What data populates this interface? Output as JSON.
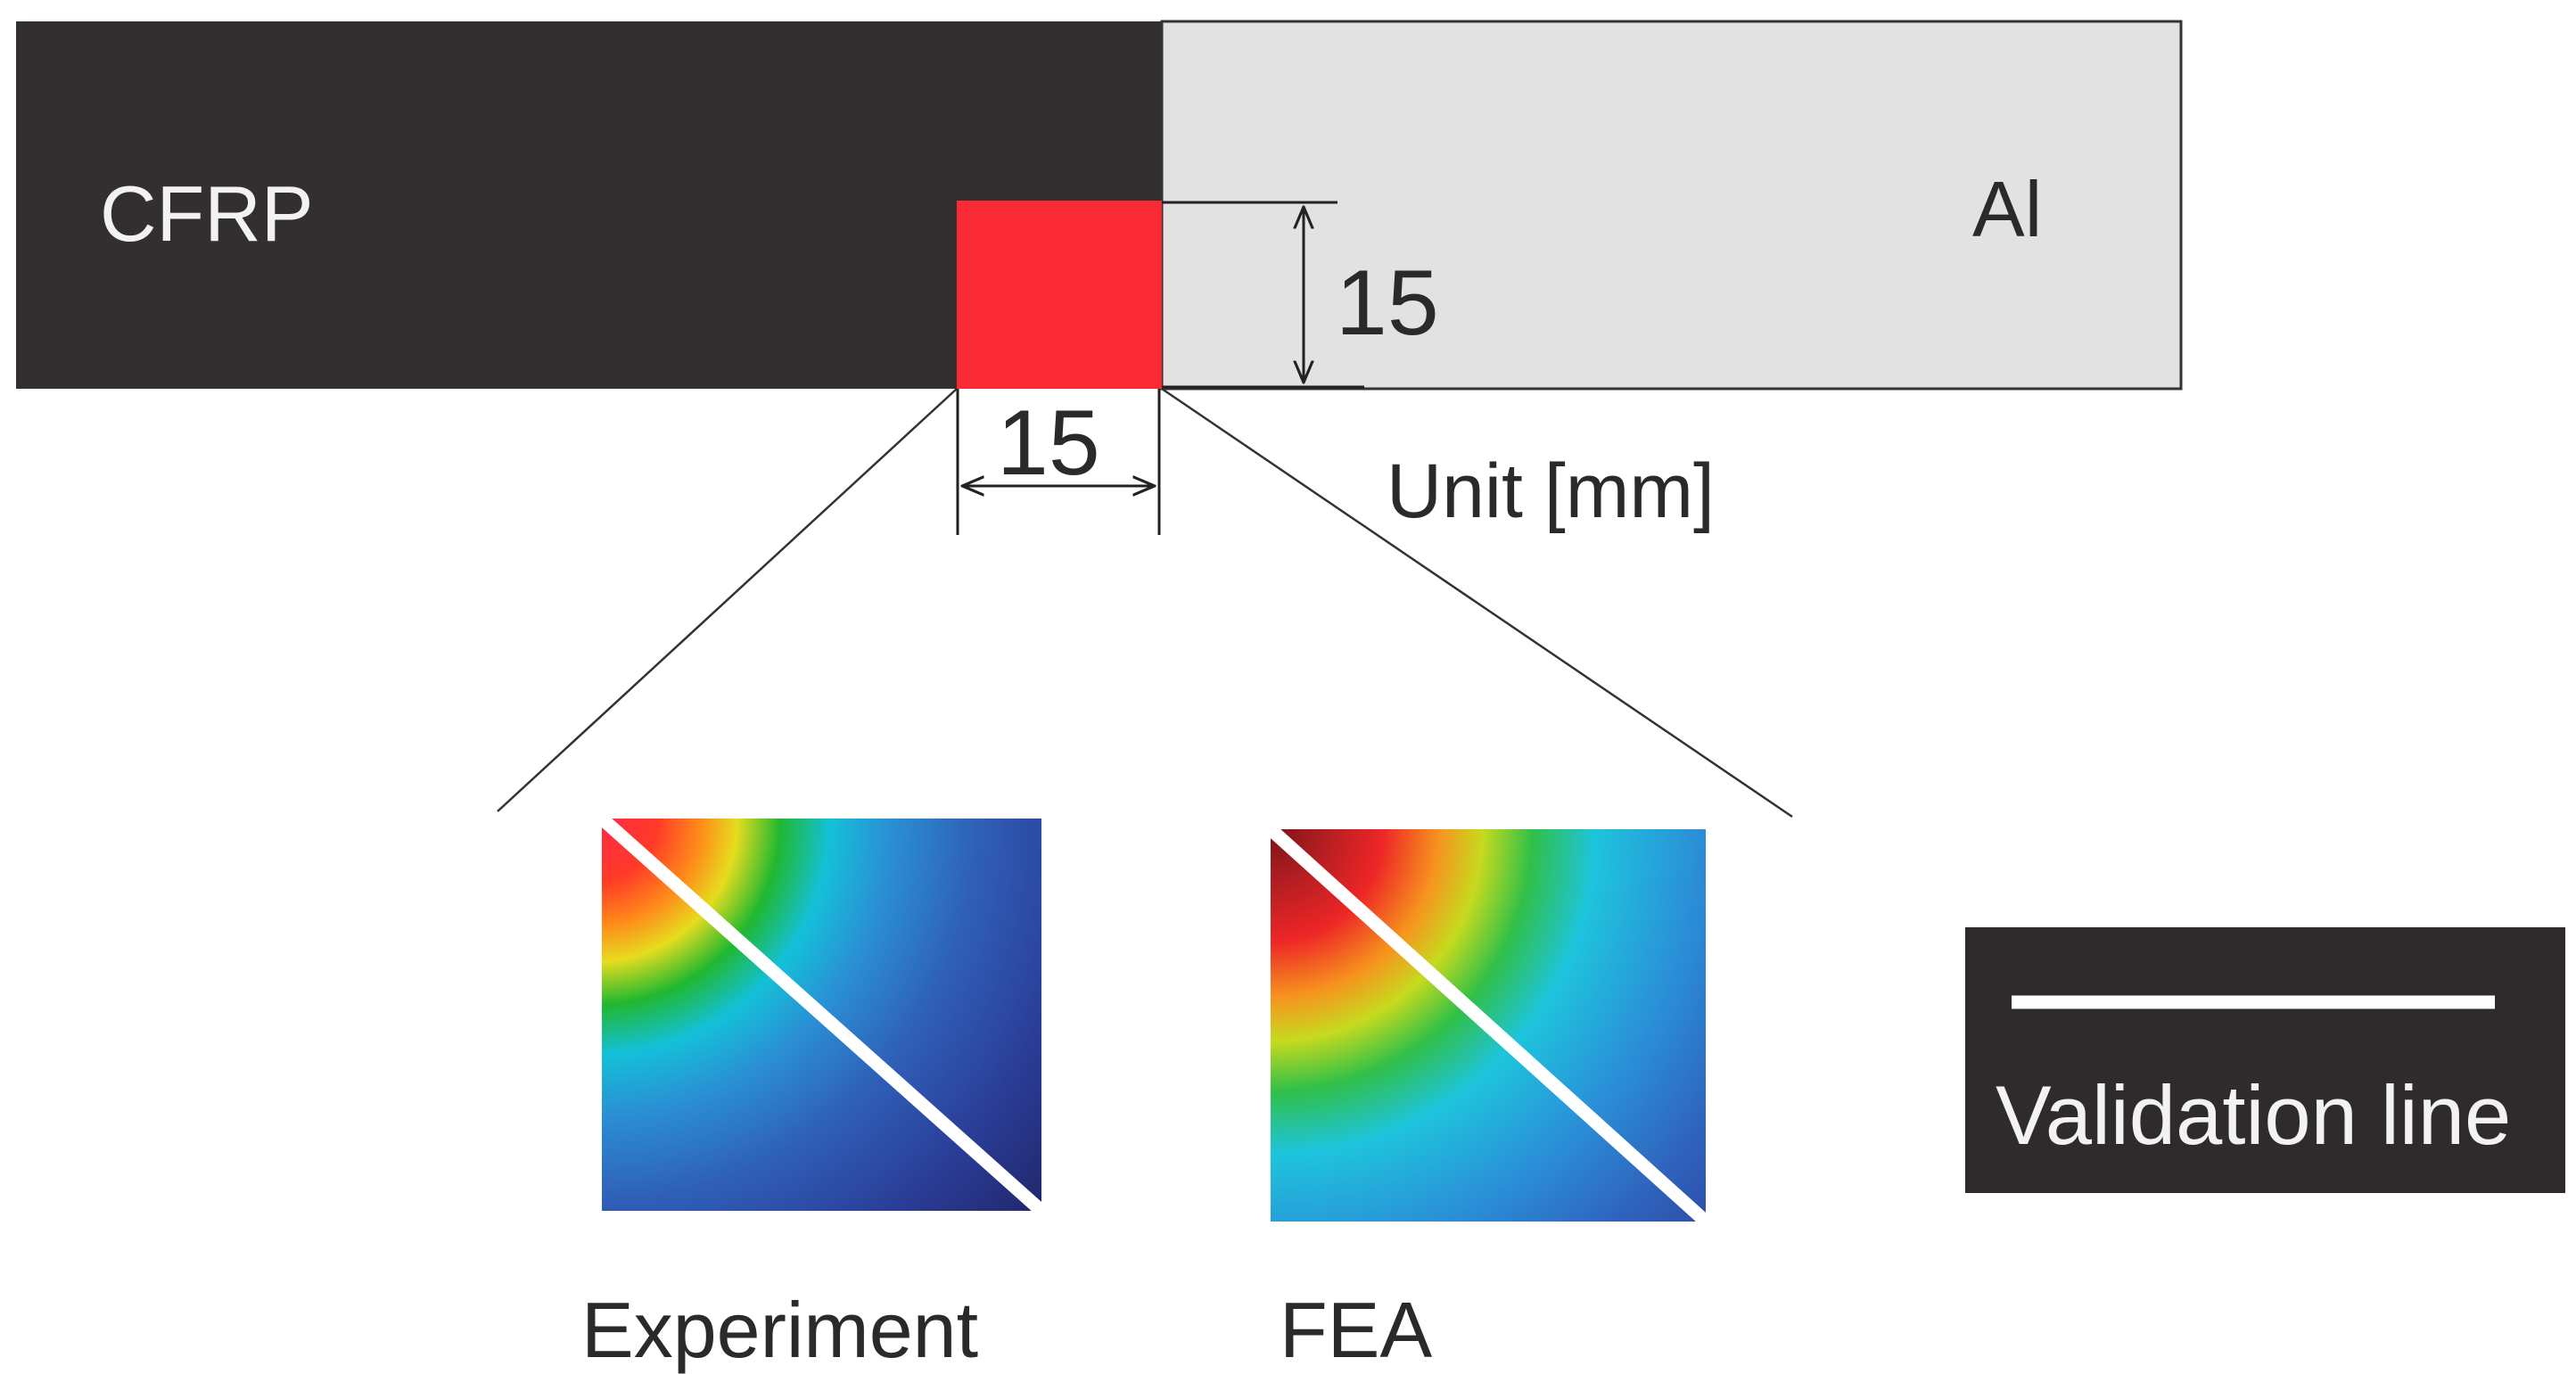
{
  "materials": {
    "left_label": "CFRP",
    "right_label": "Al"
  },
  "dimensions": {
    "height_value": "15",
    "width_value": "15",
    "unit_label": "Unit [mm]"
  },
  "panels": {
    "experiment_label": "Experiment",
    "fea_label": "FEA"
  },
  "legend": {
    "label": "Validation line"
  },
  "colors": {
    "cfrp": "#332f30",
    "al": "#e2e2e2",
    "region": "#fa2a35",
    "legend_bg": "#2f2b2c"
  }
}
